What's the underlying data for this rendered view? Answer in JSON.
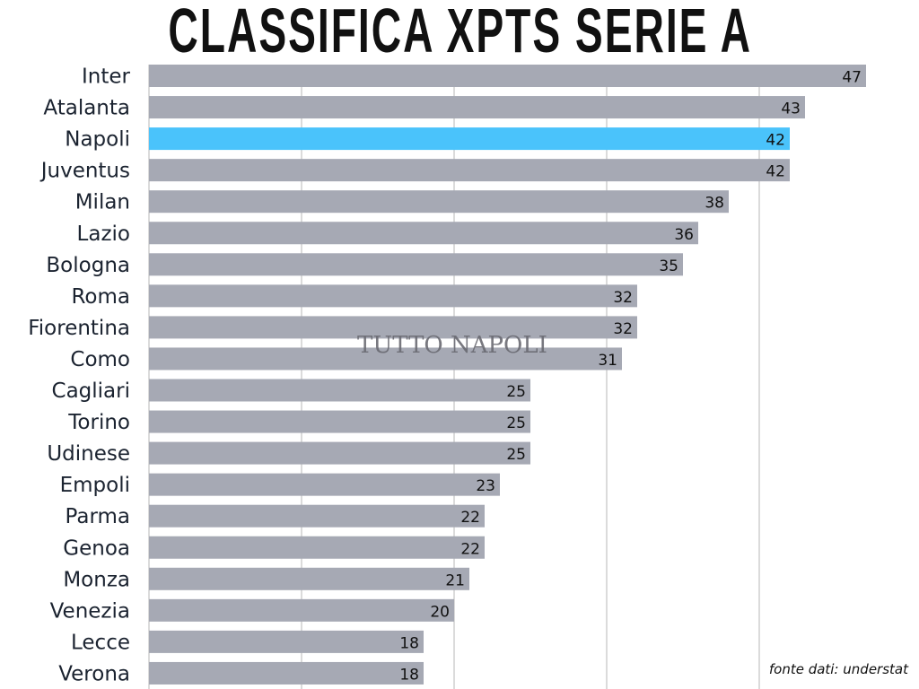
{
  "chart_data": {
    "type": "bar",
    "orientation": "horizontal",
    "title": "CLASSIFICA XPTS SERIE A",
    "categories": [
      "Inter",
      "Atalanta",
      "Napoli",
      "Juventus",
      "Milan",
      "Lazio",
      "Bologna",
      "Roma",
      "Fiorentina",
      "Como",
      "Cagliari",
      "Torino",
      "Udinese",
      "Empoli",
      "Parma",
      "Genoa",
      "Monza",
      "Venezia",
      "Lecce",
      "Verona"
    ],
    "values": [
      47,
      43,
      42,
      42,
      38,
      36,
      35,
      32,
      32,
      31,
      25,
      25,
      25,
      23,
      22,
      22,
      21,
      20,
      18,
      18
    ],
    "highlight": "Napoli",
    "xlim": [
      0,
      50
    ],
    "grid_step": 10,
    "grid": true,
    "xlabel": "",
    "ylabel": "",
    "colors": {
      "bar": "#a6a9b4",
      "highlight": "#4ac3fb",
      "grid": "#cfcfcf"
    }
  },
  "watermark": "TUTTO NAPOLI",
  "source": "fonte dati: understat"
}
